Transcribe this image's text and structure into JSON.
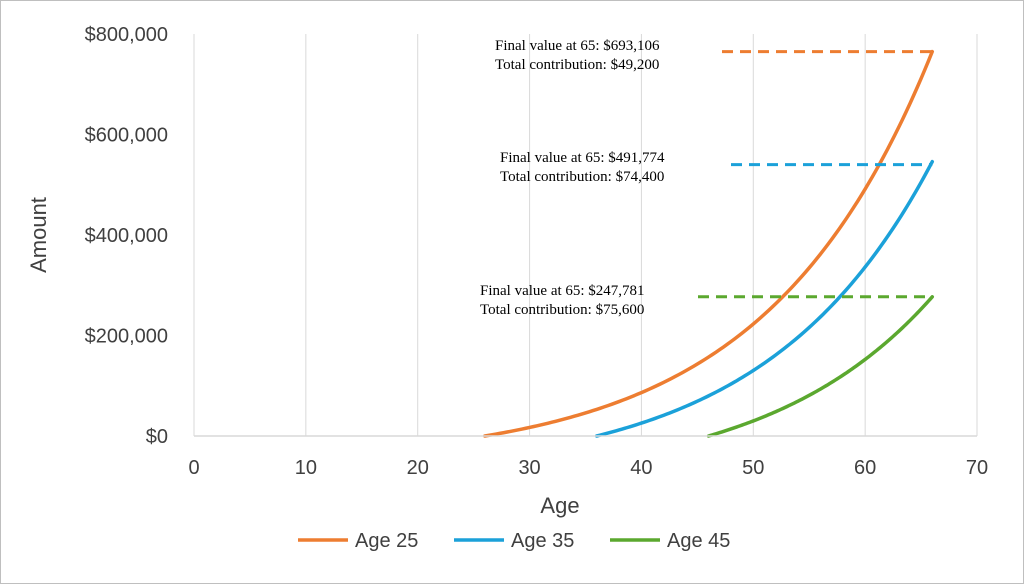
{
  "chart_data": {
    "type": "line",
    "xlabel": "Age",
    "ylabel": "Amount",
    "xlim": [
      0,
      70
    ],
    "ylim": [
      0,
      800000
    ],
    "x_ticks": [
      "0",
      "10",
      "20",
      "30",
      "40",
      "50",
      "60",
      "70"
    ],
    "y_ticks": [
      "$0",
      "$200,000",
      "$400,000",
      "$600,000",
      "$800,000"
    ],
    "grid": "vertical",
    "legend_position": "bottom",
    "growth_rate": 0.07,
    "series": [
      {
        "name": "Age 25",
        "color": "#ED7D31",
        "start_age": 26,
        "end_age": 66,
        "end_value": 765000,
        "reference_value": 765000,
        "annotation": [
          "Final value at 65: $693,106",
          "Total contribution: $49,200"
        ]
      },
      {
        "name": "Age 35",
        "color": "#1BA1D9",
        "start_age": 36,
        "end_age": 66,
        "end_value": 546000,
        "reference_value": 540000,
        "annotation": [
          "Final value at 65: $491,774",
          "Total contribution: $74,400"
        ]
      },
      {
        "name": "Age 45",
        "color": "#5BA82F",
        "start_age": 46,
        "end_age": 66,
        "end_value": 277000,
        "reference_value": 277000,
        "annotation": [
          "Final value at 65: $247,781",
          "Total contribution: $75,600"
        ]
      }
    ]
  }
}
